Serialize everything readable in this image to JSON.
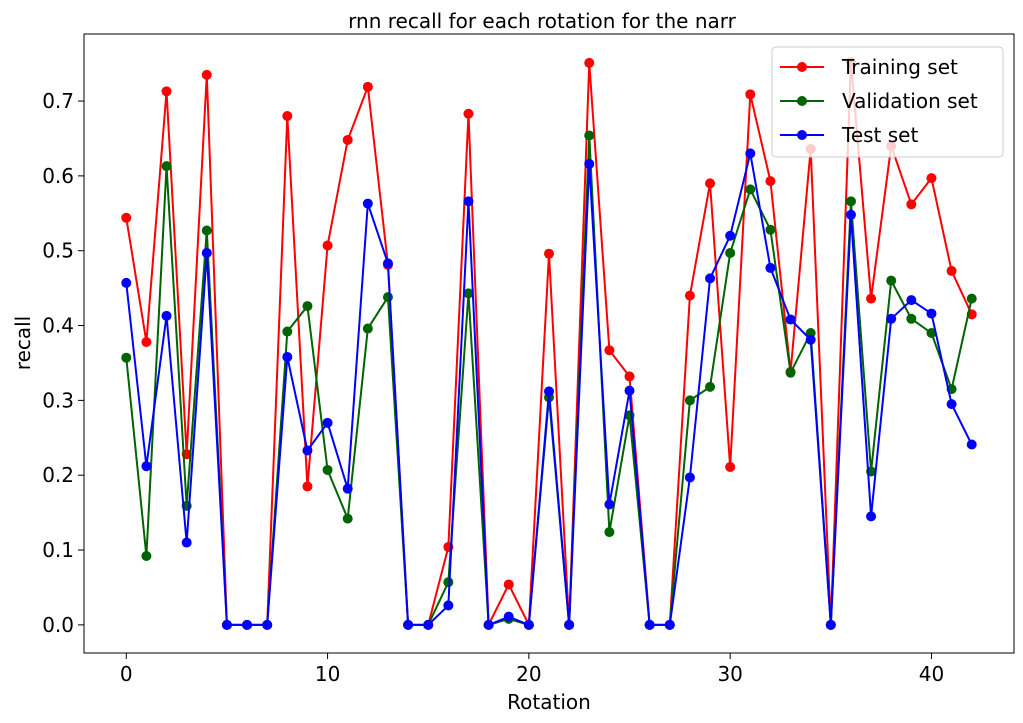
{
  "chart_data": {
    "type": "line",
    "title": "rnn recall for each rotation for the narr",
    "xlabel": "Rotation",
    "ylabel": "recall",
    "xlim": [
      -2.1,
      44.1
    ],
    "ylim": [
      -0.0376,
      0.7896
    ],
    "xticks": [
      0,
      10,
      20,
      30,
      40
    ],
    "yticks": [
      0.0,
      0.1,
      0.2,
      0.3,
      0.4,
      0.5,
      0.6,
      0.7
    ],
    "xtick_labels": [
      "0",
      "10",
      "20",
      "30",
      "40"
    ],
    "ytick_labels": [
      "0.0",
      "0.1",
      "0.2",
      "0.3",
      "0.4",
      "0.5",
      "0.6",
      "0.7"
    ],
    "grid": false,
    "legend_position": "top-right",
    "x": [
      0,
      1,
      2,
      3,
      4,
      5,
      6,
      7,
      8,
      9,
      10,
      11,
      12,
      13,
      14,
      15,
      16,
      17,
      18,
      19,
      20,
      21,
      22,
      23,
      24,
      25,
      26,
      27,
      28,
      29,
      30,
      31,
      32,
      33,
      34,
      35,
      36,
      37,
      38,
      39,
      40,
      41,
      42
    ],
    "series": [
      {
        "name": "Training set",
        "color": "#ff0000",
        "values": [
          0.544,
          0.378,
          0.713,
          0.228,
          0.735,
          0.0,
          0.0,
          0.0,
          0.68,
          0.185,
          0.507,
          0.648,
          0.719,
          0.481,
          0.0,
          0.0,
          0.104,
          0.683,
          0.0,
          0.054,
          0.0,
          0.496,
          0.0,
          0.751,
          0.367,
          0.332,
          0.0,
          0.0,
          0.44,
          0.59,
          0.211,
          0.709,
          0.593,
          0.338,
          0.636,
          0.0,
          0.752,
          0.436,
          0.64,
          0.562,
          0.597,
          0.473,
          0.415
        ]
      },
      {
        "name": "Validation set",
        "color": "#006400",
        "values": [
          0.357,
          0.092,
          0.613,
          0.159,
          0.527,
          0.0,
          0.0,
          0.0,
          0.392,
          0.426,
          0.207,
          0.142,
          0.396,
          0.438,
          0.0,
          0.0,
          0.057,
          0.443,
          0.0,
          0.008,
          0.0,
          0.304,
          0.0,
          0.654,
          0.124,
          0.28,
          0.0,
          0.0,
          0.3,
          0.318,
          0.497,
          0.582,
          0.528,
          0.337,
          0.39,
          0.0,
          0.566,
          0.205,
          0.46,
          0.409,
          0.39,
          0.315,
          0.436
        ]
      },
      {
        "name": "Test set",
        "color": "#0000ff",
        "values": [
          0.457,
          0.212,
          0.413,
          0.11,
          0.497,
          0.0,
          0.0,
          0.0,
          0.358,
          0.233,
          0.27,
          0.182,
          0.563,
          0.483,
          0.0,
          0.0,
          0.026,
          0.566,
          0.0,
          0.011,
          0.0,
          0.312,
          0.0,
          0.616,
          0.161,
          0.313,
          0.0,
          0.0,
          0.197,
          0.463,
          0.52,
          0.63,
          0.477,
          0.408,
          0.381,
          0.0,
          0.548,
          0.145,
          0.409,
          0.434,
          0.416,
          0.295,
          0.241
        ]
      }
    ]
  }
}
